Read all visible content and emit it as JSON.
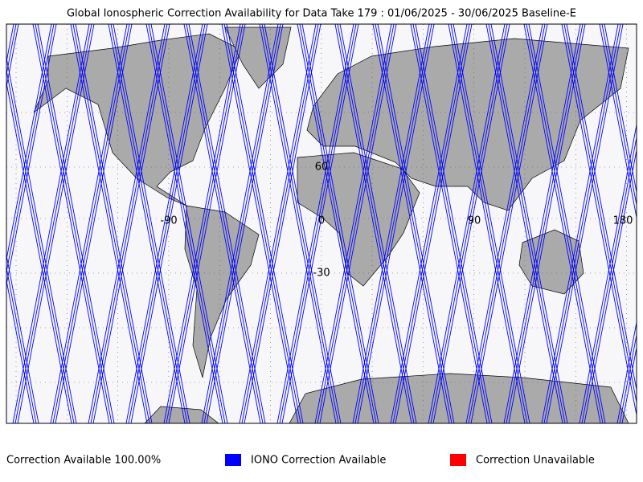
{
  "title": "Global Ionospheric Correction Availability for Data Take 179 : 01/06/2025 - 30/06/2025 Baseline-E",
  "map": {
    "longitude_labels": [
      "-90",
      "0",
      "90",
      "180"
    ],
    "latitude_labels": [
      "60",
      "-30"
    ]
  },
  "footer": {
    "availability": "Correction Available 100.00%",
    "legend": [
      {
        "label": "IONO Correction Available",
        "color": "#0000ff"
      },
      {
        "label": "Correction Unavailable",
        "color": "#ff0000"
      }
    ]
  }
}
